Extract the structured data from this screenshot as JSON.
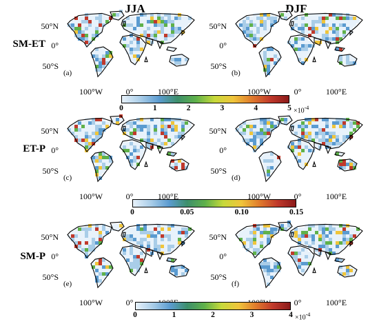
{
  "columns": [
    "JJA",
    "DJF"
  ],
  "rows": [
    {
      "label": "SM-ET",
      "panels": [
        "(a)",
        "(b)"
      ],
      "palette": "smet"
    },
    {
      "label": "ET-P",
      "panels": [
        "(c)",
        "(d)"
      ],
      "palette": "etp"
    },
    {
      "label": "SM-P",
      "panels": [
        "(e)",
        "(f)"
      ],
      "palette": "smp"
    }
  ],
  "lat_labels": [
    "50°N",
    "0°",
    "50°S"
  ],
  "lon_labels": [
    "100°W",
    "0°",
    "100°E"
  ],
  "colorbars": [
    {
      "ticks": [
        "0",
        "1",
        "2",
        "3",
        "4",
        "5"
      ],
      "multiplier": "×10",
      "exponent": "-4",
      "range": [
        0,
        5
      ]
    },
    {
      "ticks": [
        "0",
        "0.05",
        "0.10",
        "0.15"
      ],
      "range": [
        0,
        0.15
      ]
    },
    {
      "ticks": [
        "0",
        "1",
        "2",
        "3",
        "4"
      ],
      "multiplier": "×10",
      "exponent": "-4",
      "range": [
        0,
        4
      ]
    }
  ],
  "colors": {
    "ramp": [
      "#e8f2fb",
      "#a9cde8",
      "#5b9bd0",
      "#3d8f6b",
      "#5fb14a",
      "#c7d93a",
      "#f0c53b",
      "#e07b2c",
      "#c0392b",
      "#8b1a1a"
    ],
    "coast": "#000000"
  }
}
